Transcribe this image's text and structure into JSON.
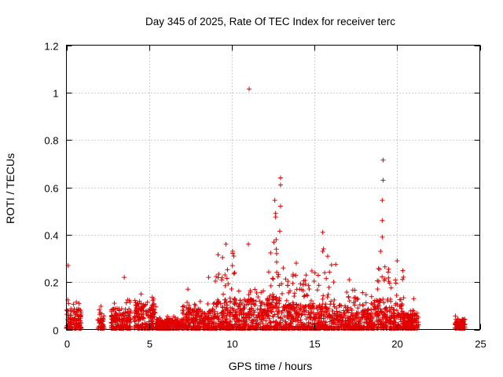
{
  "chart_data": {
    "type": "scatter",
    "title": "Day 345 of 2025, Rate Of TEC Index for receiver terc",
    "xlabel": "GPS time / hours",
    "ylabel": "ROTI / TECUs",
    "xlim": [
      0,
      25
    ],
    "ylim": [
      0,
      1.2
    ],
    "xticks": [
      "0",
      "5",
      "10",
      "15",
      "20",
      "25"
    ],
    "yticks": [
      "0",
      "0.2",
      "0.4",
      "0.6",
      "0.8",
      "1",
      "1.2"
    ],
    "grid": true,
    "marker": "+",
    "series_color": "#e00000",
    "clusters": [
      {
        "x0": 0.0,
        "x1": 0.9,
        "base": 0.04,
        "peak": 0.14
      },
      {
        "x0": 1.9,
        "x1": 2.3,
        "base": 0.03,
        "peak": 0.1
      },
      {
        "x0": 2.7,
        "x1": 3.9,
        "base": 0.04,
        "peak": 0.13
      },
      {
        "x0": 4.1,
        "x1": 5.4,
        "base": 0.05,
        "peak": 0.15
      },
      {
        "x0": 5.4,
        "x1": 7.0,
        "base": 0.02,
        "peak": 0.06
      },
      {
        "x0": 7.0,
        "x1": 9.0,
        "base": 0.04,
        "peak": 0.12
      },
      {
        "x0": 9.0,
        "x1": 10.2,
        "base": 0.06,
        "peak": 0.34
      },
      {
        "x0": 10.2,
        "x1": 12.2,
        "base": 0.06,
        "peak": 0.18
      },
      {
        "x0": 12.2,
        "x1": 13.2,
        "base": 0.07,
        "peak": 0.4
      },
      {
        "x0": 13.2,
        "x1": 15.2,
        "base": 0.05,
        "peak": 0.25
      },
      {
        "x0": 15.2,
        "x1": 16.6,
        "base": 0.05,
        "peak": 0.32
      },
      {
        "x0": 16.6,
        "x1": 18.6,
        "base": 0.04,
        "peak": 0.18
      },
      {
        "x0": 18.6,
        "x1": 19.6,
        "base": 0.06,
        "peak": 0.27
      },
      {
        "x0": 19.6,
        "x1": 20.4,
        "base": 0.05,
        "peak": 0.26
      },
      {
        "x0": 20.4,
        "x1": 21.3,
        "base": 0.03,
        "peak": 0.08
      },
      {
        "x0": 23.5,
        "x1": 24.1,
        "base": 0.02,
        "peak": 0.06
      }
    ],
    "outliers": [
      {
        "x": 11.05,
        "y": 1.015
      },
      {
        "x": 19.15,
        "y": 0.715
      },
      {
        "x": 19.15,
        "y": 0.63
      },
      {
        "x": 12.95,
        "y": 0.64
      },
      {
        "x": 12.95,
        "y": 0.61
      },
      {
        "x": 12.6,
        "y": 0.545
      },
      {
        "x": 12.95,
        "y": 0.52
      },
      {
        "x": 19.1,
        "y": 0.545
      },
      {
        "x": 12.65,
        "y": 0.49
      },
      {
        "x": 19.1,
        "y": 0.46
      },
      {
        "x": 12.65,
        "y": 0.475
      },
      {
        "x": 12.9,
        "y": 0.415
      },
      {
        "x": 15.5,
        "y": 0.41
      },
      {
        "x": 19.1,
        "y": 0.39
      },
      {
        "x": 11.0,
        "y": 0.36
      },
      {
        "x": 9.65,
        "y": 0.36
      },
      {
        "x": 15.5,
        "y": 0.33
      },
      {
        "x": 15.55,
        "y": 0.34
      },
      {
        "x": 19.0,
        "y": 0.33
      },
      {
        "x": 13.9,
        "y": 0.28
      },
      {
        "x": 3.5,
        "y": 0.22
      },
      {
        "x": 8.6,
        "y": 0.22
      },
      {
        "x": 17.1,
        "y": 0.21
      },
      {
        "x": 7.35,
        "y": 0.17
      },
      {
        "x": 0.1,
        "y": 0.27
      },
      {
        "x": 20.0,
        "y": 0.29
      },
      {
        "x": 21.0,
        "y": 0.13
      }
    ]
  }
}
